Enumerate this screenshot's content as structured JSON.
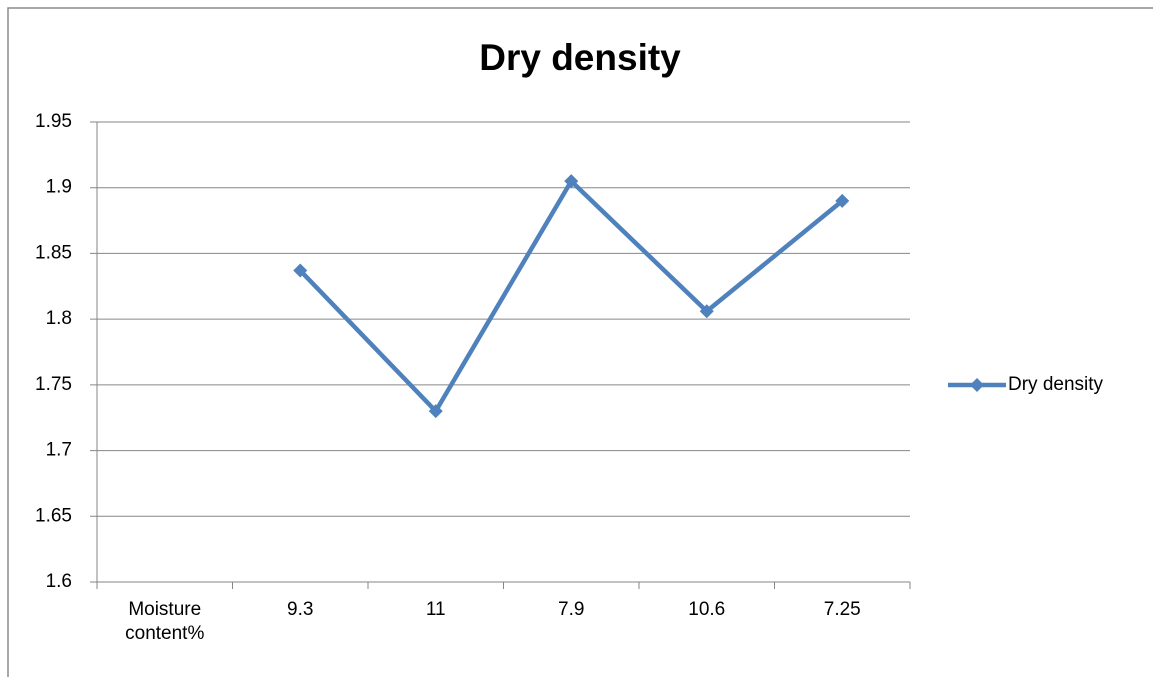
{
  "chart_data": {
    "type": "line",
    "title": "Dry density",
    "categories": [
      "Moisture content%",
      "9.3",
      "11",
      "7.9",
      "10.6",
      "7.25"
    ],
    "series": [
      {
        "name": "Dry density",
        "color": "#4f81bd",
        "values": [
          null,
          1.837,
          1.73,
          1.905,
          1.806,
          1.89
        ]
      }
    ],
    "ylim": [
      1.6,
      1.95
    ],
    "yticks": [
      1.6,
      1.65,
      1.7,
      1.75,
      1.8,
      1.85,
      1.9,
      1.95
    ],
    "grid": true,
    "legend": "right"
  }
}
